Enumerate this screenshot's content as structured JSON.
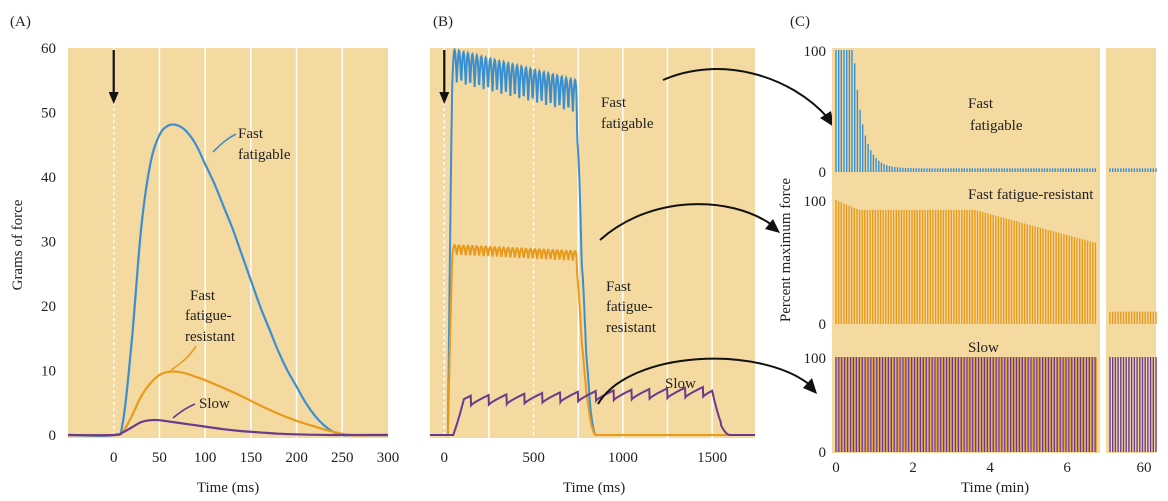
{
  "colors": {
    "background": "#f4d9a0",
    "fast_fatigable": "#3a8fd1",
    "fast_fatigue_resistant": "#e89a1c",
    "slow": "#6a3a8c",
    "arrow": "#111111",
    "grid": "#ffffff"
  },
  "panels": {
    "a": {
      "label": "(A)",
      "fast": [
        "Fast",
        "fatigable"
      ],
      "ffr": [
        "Fast",
        "fatigue-",
        "resistant"
      ],
      "slow": "Slow"
    },
    "b": {
      "label": "(B)",
      "fast": [
        "Fast",
        "fatigable"
      ],
      "ffr": [
        "Fast",
        "fatigue-",
        "resistant"
      ],
      "slow": "Slow"
    },
    "c": {
      "label": "(C)",
      "fast": [
        "Fast",
        "fatigable"
      ],
      "ffr": "Fast fatigue-resistant",
      "slow": "Slow"
    }
  },
  "chart_data": [
    {
      "type": "line",
      "panel": "A",
      "xlabel": "Time (ms)",
      "ylabel": "Grams of force",
      "xlim": [
        -50,
        300
      ],
      "ylim": [
        0,
        60
      ],
      "x_ticks": [
        "0",
        "50",
        "100",
        "150",
        "200",
        "250",
        "300"
      ],
      "y_ticks": [
        "0",
        "10",
        "20",
        "30",
        "40",
        "50",
        "60"
      ],
      "stimulus_arrow_x": 0,
      "series": [
        {
          "name": "Fast fatigable",
          "x": [
            -50,
            0,
            10,
            20,
            30,
            40,
            50,
            60,
            70,
            80,
            90,
            100,
            110,
            120,
            130,
            140,
            150,
            160,
            170,
            180,
            190,
            200,
            210,
            220,
            230,
            240,
            250,
            260,
            300
          ],
          "y": [
            0,
            0,
            2,
            15,
            32,
            42,
            46.5,
            48,
            48,
            47,
            45,
            42,
            39,
            35.5,
            32,
            28,
            24,
            20,
            16.5,
            13,
            10,
            7.5,
            5,
            3,
            1.5,
            0.5,
            0,
            0,
            0
          ]
        },
        {
          "name": "Fast fatigue-resistant",
          "x": [
            -50,
            0,
            10,
            20,
            30,
            40,
            50,
            60,
            70,
            80,
            90,
            100,
            120,
            140,
            160,
            180,
            200,
            220,
            240,
            260,
            300
          ],
          "y": [
            0,
            0,
            0.5,
            3,
            6,
            8,
            9.3,
            9.8,
            9.8,
            9.5,
            9,
            8.5,
            7.3,
            6,
            4.6,
            3.3,
            2.2,
            1.3,
            0.5,
            0,
            0
          ]
        },
        {
          "name": "Slow",
          "x": [
            -50,
            0,
            10,
            20,
            30,
            40,
            50,
            60,
            80,
            100,
            120,
            140,
            160,
            180,
            200,
            240,
            300
          ],
          "y": [
            0,
            0,
            0.4,
            1.2,
            2,
            2.3,
            2.3,
            2.1,
            1.7,
            1.3,
            0.9,
            0.6,
            0.4,
            0.2,
            0.1,
            0,
            0
          ]
        }
      ]
    },
    {
      "type": "line",
      "panel": "B",
      "xlabel": "Time (ms)",
      "xlim": [
        -80,
        1740
      ],
      "ylim": [
        0,
        60
      ],
      "x_ticks": [
        "0",
        "500",
        "1000",
        "1500"
      ],
      "stimulus_arrow_x": 0,
      "series": [
        {
          "name": "Fast fatigable",
          "onset": 20,
          "offset": 740,
          "end": 850,
          "start_level": 55,
          "end_level": 50,
          "ripple": 5,
          "period": 25
        },
        {
          "name": "Fast fatigue-resistant",
          "onset": 20,
          "offset": 740,
          "end": 850,
          "start_level": 28,
          "end_level": 27,
          "ripple": 1.5,
          "period": 25
        },
        {
          "name": "Slow",
          "onset": 50,
          "offset": 1500,
          "end": 1600,
          "start_level": 4.5,
          "end_level": 6,
          "ripple": 1.5,
          "period": 100
        }
      ]
    },
    {
      "type": "bar",
      "panel": "C",
      "xlabel": "Time (min)",
      "ylabel": "Percent maximum force",
      "xlim": [
        0,
        6.8
      ],
      "x_ticks": [
        "0",
        "2",
        "4",
        "6",
        "60"
      ],
      "y_ticks": [
        "0",
        "100"
      ],
      "series": [
        {
          "name": "Fast fatigable",
          "n": 98,
          "decay": "fast",
          "late_level": 3
        },
        {
          "name": "Fast fatigue-resistant",
          "n": 100,
          "start": 100,
          "plateau": 92,
          "end": 65,
          "late_level": 10
        },
        {
          "name": "Slow",
          "n": 90,
          "level": 100,
          "late_level": 100
        }
      ]
    }
  ]
}
